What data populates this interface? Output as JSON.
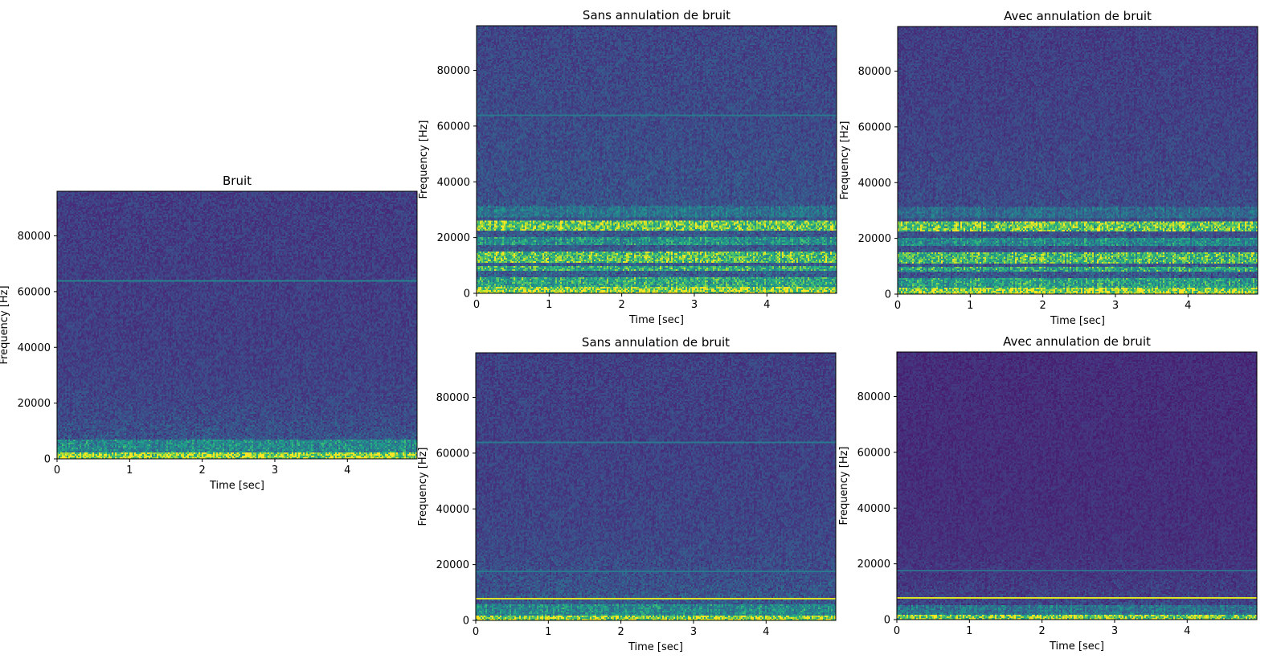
{
  "figure": {
    "name": "spectrogram-comparison"
  },
  "chart_data": [
    {
      "id": "bruit",
      "type": "heatmap",
      "title": "Bruit",
      "xlabel": "Time [sec]",
      "ylabel": "Frequency [Hz]",
      "xlim": [
        0,
        4.96
      ],
      "ylim": [
        0,
        96000
      ],
      "xticks": [
        0,
        1,
        2,
        3,
        4
      ],
      "xtick_labels": [
        "0",
        "1",
        "2",
        "3",
        "4"
      ],
      "yticks": [
        0,
        20000,
        40000,
        60000,
        80000
      ],
      "ytick_labels": [
        "0",
        "20000",
        "40000",
        "60000",
        "80000"
      ],
      "colormap": "viridis",
      "bands": [
        {
          "f_low": 0,
          "f_high": 2500,
          "intensity": 1.0
        },
        {
          "f_low": 2500,
          "f_high": 7000,
          "intensity": 0.55
        }
      ],
      "lines": [
        {
          "freq": 64000,
          "intensity": 0.45
        }
      ],
      "background_intensity": 0.18,
      "noise_falloff_hz": 15000
    },
    {
      "id": "sans-top",
      "type": "heatmap",
      "title": "Sans annulation de bruit",
      "xlabel": "Time [sec]",
      "ylabel": "Frequency [Hz]",
      "xlim": [
        0,
        4.96
      ],
      "ylim": [
        0,
        96000
      ],
      "xticks": [
        0,
        1,
        2,
        3,
        4
      ],
      "xtick_labels": [
        "0",
        "1",
        "2",
        "3",
        "4"
      ],
      "yticks": [
        0,
        20000,
        40000,
        60000,
        80000
      ],
      "ytick_labels": [
        "0",
        "20000",
        "40000",
        "60000",
        "80000"
      ],
      "colormap": "viridis",
      "bands": [
        {
          "f_low": 0,
          "f_high": 2500,
          "intensity": 1.0
        },
        {
          "f_low": 2500,
          "f_high": 6000,
          "intensity": 0.7
        },
        {
          "f_low": 8000,
          "f_high": 10000,
          "intensity": 0.75
        },
        {
          "f_low": 11000,
          "f_high": 15000,
          "intensity": 0.85
        },
        {
          "f_low": 17500,
          "f_high": 20000,
          "intensity": 0.6
        },
        {
          "f_low": 22500,
          "f_high": 26000,
          "intensity": 0.9
        },
        {
          "f_low": 27000,
          "f_high": 31000,
          "intensity": 0.45
        }
      ],
      "lines": [
        {
          "freq": 64000,
          "intensity": 0.4
        }
      ],
      "background_intensity": 0.2,
      "noise_falloff_hz": 40000
    },
    {
      "id": "avec-top",
      "type": "heatmap",
      "title": "Avec annulation de bruit",
      "xlabel": "Time [sec]",
      "ylabel": "Frequency [Hz]",
      "xlim": [
        0,
        4.96
      ],
      "ylim": [
        0,
        96000
      ],
      "xticks": [
        0,
        1,
        2,
        3,
        4
      ],
      "xtick_labels": [
        "0",
        "1",
        "2",
        "3",
        "4"
      ],
      "yticks": [
        0,
        20000,
        40000,
        60000,
        80000
      ],
      "ytick_labels": [
        "0",
        "20000",
        "40000",
        "60000",
        "80000"
      ],
      "colormap": "viridis",
      "bands": [
        {
          "f_low": 0,
          "f_high": 2500,
          "intensity": 1.0
        },
        {
          "f_low": 2500,
          "f_high": 6000,
          "intensity": 0.65
        },
        {
          "f_low": 8000,
          "f_high": 10000,
          "intensity": 0.7
        },
        {
          "f_low": 11000,
          "f_high": 15000,
          "intensity": 0.8
        },
        {
          "f_low": 17500,
          "f_high": 20000,
          "intensity": 0.55
        },
        {
          "f_low": 22500,
          "f_high": 26000,
          "intensity": 0.88
        },
        {
          "f_low": 27000,
          "f_high": 31000,
          "intensity": 0.4
        }
      ],
      "lines": [],
      "background_intensity": 0.17,
      "noise_falloff_hz": 40000
    },
    {
      "id": "sans-bottom",
      "type": "heatmap",
      "title": "Sans annulation de bruit",
      "xlabel": "Time [sec]",
      "ylabel": "Frequency [Hz]",
      "xlim": [
        0,
        4.96
      ],
      "ylim": [
        0,
        96000
      ],
      "xticks": [
        0,
        1,
        2,
        3,
        4
      ],
      "xtick_labels": [
        "0",
        "1",
        "2",
        "3",
        "4"
      ],
      "yticks": [
        0,
        20000,
        40000,
        60000,
        80000
      ],
      "ytick_labels": [
        "0",
        "20000",
        "40000",
        "60000",
        "80000"
      ],
      "colormap": "viridis",
      "bands": [
        {
          "f_low": 0,
          "f_high": 2000,
          "intensity": 1.0
        },
        {
          "f_low": 2000,
          "f_high": 6000,
          "intensity": 0.55
        }
      ],
      "lines": [
        {
          "freq": 8000,
          "intensity": 0.95
        },
        {
          "freq": 17500,
          "intensity": 0.4
        },
        {
          "freq": 64000,
          "intensity": 0.4
        }
      ],
      "background_intensity": 0.19,
      "noise_falloff_hz": 18000
    },
    {
      "id": "avec-bottom",
      "type": "heatmap",
      "title": "Avec annulation de bruit",
      "xlabel": "Time [sec]",
      "ylabel": "Frequency [Hz]",
      "xlim": [
        0,
        4.96
      ],
      "ylim": [
        0,
        96000
      ],
      "xticks": [
        0,
        1,
        2,
        3,
        4
      ],
      "xtick_labels": [
        "0",
        "1",
        "2",
        "3",
        "4"
      ],
      "yticks": [
        0,
        20000,
        40000,
        60000,
        80000
      ],
      "ytick_labels": [
        "0",
        "20000",
        "40000",
        "60000",
        "80000"
      ],
      "colormap": "viridis",
      "bands": [
        {
          "f_low": 0,
          "f_high": 1500,
          "intensity": 0.95
        },
        {
          "f_low": 1500,
          "f_high": 5000,
          "intensity": 0.45
        }
      ],
      "lines": [
        {
          "freq": 8000,
          "intensity": 0.95
        },
        {
          "freq": 17500,
          "intensity": 0.35
        }
      ],
      "background_intensity": 0.13,
      "noise_falloff_hz": 12000
    }
  ]
}
